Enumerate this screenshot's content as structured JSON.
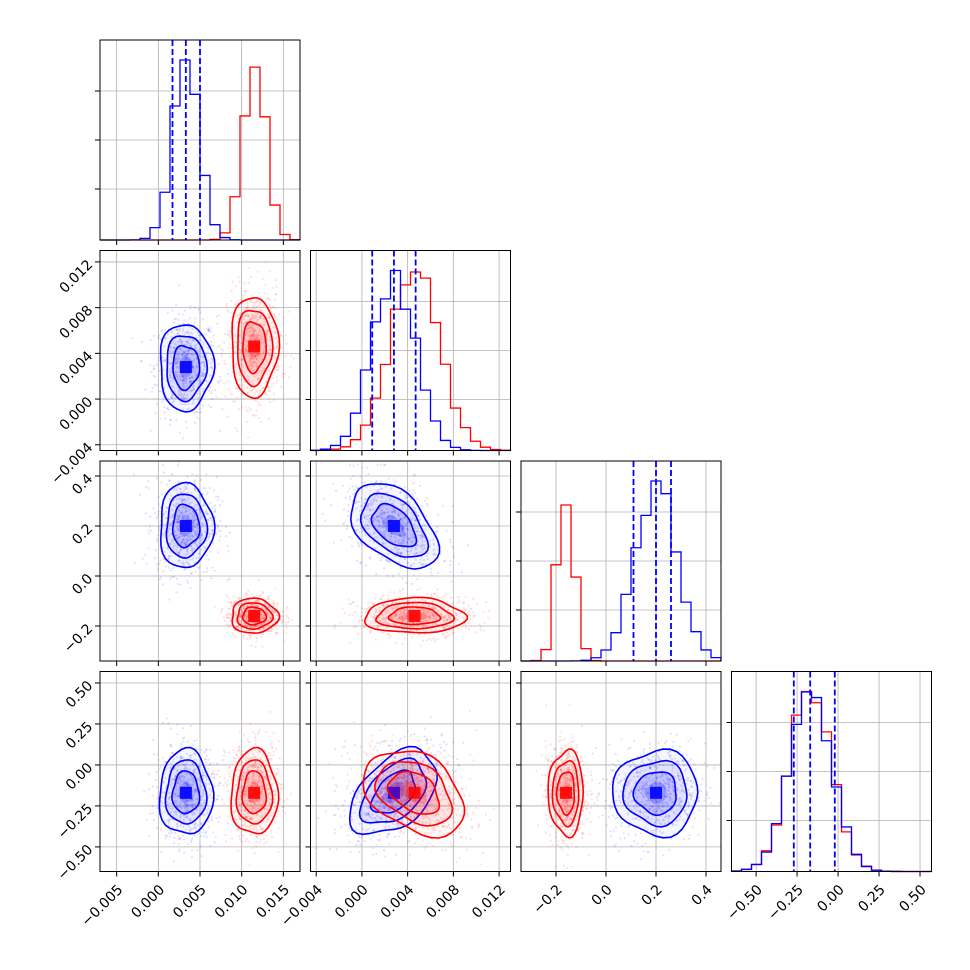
{
  "chart_data": {
    "type": "corner",
    "colors": {
      "A": "#0000ff",
      "B": "#ff0000"
    },
    "dashed_lines_series": "A",
    "grid": true,
    "params": [
      {
        "range": [
          -0.007,
          0.017
        ],
        "ticks": [
          -0.005,
          0.0,
          0.005,
          0.01,
          0.015
        ],
        "tick_labels": [
          "−0.005",
          "0.000",
          "0.005",
          "0.010",
          "0.015"
        ]
      },
      {
        "range": [
          -0.0045,
          0.013
        ],
        "ticks": [
          -0.004,
          0.0,
          0.004,
          0.008,
          0.012
        ],
        "tick_labels": [
          "−0.004",
          "0.000",
          "0.004",
          "0.008",
          "0.012"
        ]
      },
      {
        "range": [
          -0.34,
          0.46
        ],
        "ticks": [
          -0.2,
          0.0,
          0.2,
          0.4
        ],
        "tick_labels": [
          "−0.2",
          "0.0",
          "0.2",
          "0.4"
        ]
      },
      {
        "range": [
          -0.65,
          0.57
        ],
        "ticks": [
          -0.5,
          -0.25,
          0.0,
          0.25,
          0.5
        ],
        "tick_labels": [
          "−0.50",
          "−0.25",
          "0.00",
          "0.25",
          "0.50"
        ]
      }
    ],
    "series": [
      {
        "id": "A",
        "mean": [
          0.0033,
          0.0028,
          0.2,
          -0.17
        ],
        "std": [
          0.0016,
          0.0019,
          0.085,
          0.13
        ],
        "quantiles": [
          [
            0.0017,
            0.0033,
            0.005
          ],
          [
            0.0009,
            0.0028,
            0.0047
          ],
          [
            0.11,
            0.2,
            0.26
          ],
          [
            -0.27,
            -0.17,
            -0.02
          ]
        ],
        "correlation": [
          [
            1,
            0,
            0,
            0
          ],
          [
            0,
            1,
            -0.45,
            0.45
          ],
          [
            0,
            -0.45,
            1,
            0
          ],
          [
            0,
            0.45,
            0,
            1
          ]
        ]
      },
      {
        "id": "B",
        "mean": [
          0.0115,
          0.0046,
          -0.16,
          -0.17
        ],
        "std": [
          0.0014,
          0.0022,
          0.035,
          0.13
        ],
        "correlation": [
          [
            1,
            0,
            0,
            0
          ],
          [
            0,
            1,
            0,
            -0.35
          ],
          [
            0,
            0,
            1,
            0
          ],
          [
            0,
            -0.35,
            0,
            1
          ]
        ]
      }
    ]
  }
}
